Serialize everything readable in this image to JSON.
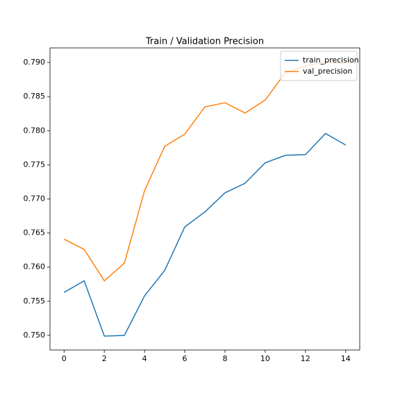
{
  "chart_data": {
    "type": "line",
    "title": "Train / Validation Precision",
    "x": [
      0,
      1,
      2,
      3,
      4,
      5,
      6,
      7,
      8,
      9,
      10,
      11,
      12,
      13,
      14
    ],
    "series": [
      {
        "name": "train_precision",
        "color": "#1f77b4",
        "values": [
          0.7563,
          0.758,
          0.7499,
          0.75,
          0.7558,
          0.7595,
          0.7659,
          0.7681,
          0.7709,
          0.7723,
          0.7753,
          0.7764,
          0.7765,
          0.7796,
          0.7779
        ]
      },
      {
        "name": "val_precision",
        "color": "#ff7f0e",
        "values": [
          0.7641,
          0.7626,
          0.758,
          0.7606,
          0.7712,
          0.7777,
          0.7795,
          0.7835,
          0.7841,
          0.7826,
          0.7845,
          0.7885,
          0.7895,
          0.7901,
          0.7898
        ]
      }
    ],
    "xlim": [
      -0.7,
      14.7
    ],
    "xticks": [
      0,
      2,
      4,
      6,
      8,
      10,
      12,
      14
    ],
    "ylim": [
      0.74786,
      0.79214
    ],
    "yticks": [
      {
        "value": 0.75,
        "label": "0.750"
      },
      0.755,
      {
        "value": 0.76,
        "label": "0.760"
      },
      0.765,
      {
        "value": 0.77,
        "label": "0.770"
      },
      0.775,
      {
        "value": 0.78,
        "label": "0.780"
      },
      0.785,
      {
        "value": 0.79,
        "label": "0.790"
      }
    ],
    "legend": "upper right",
    "grid": false
  }
}
